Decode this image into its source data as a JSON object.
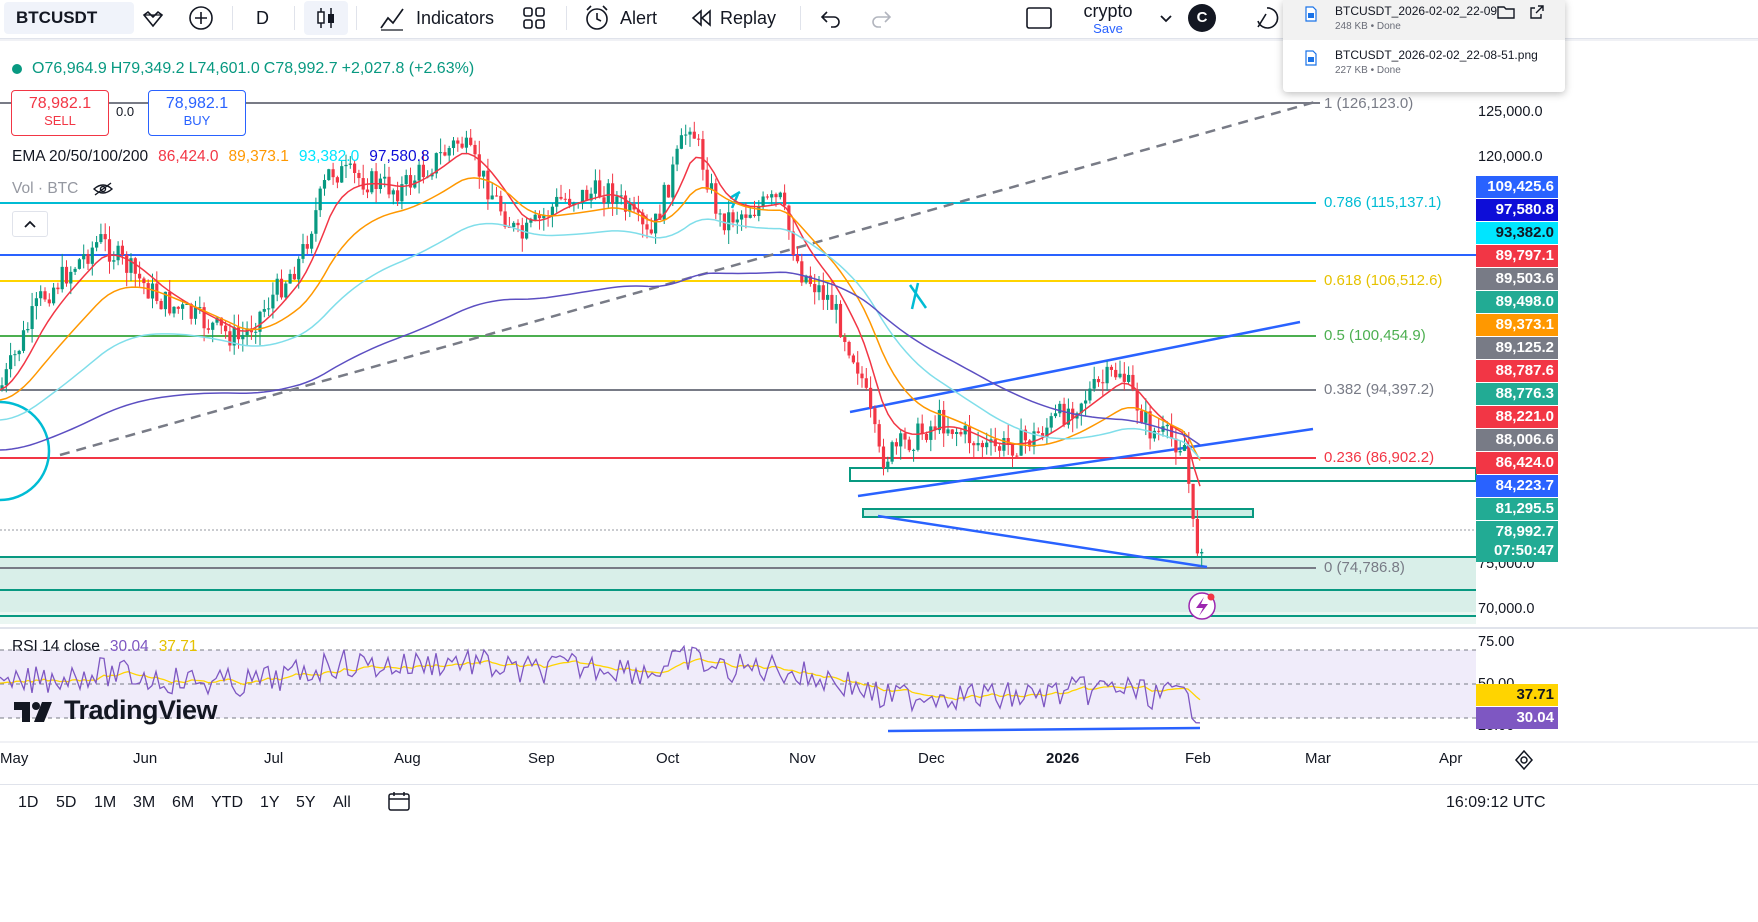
{
  "toolbar": {
    "symbol": "BTCUSDT",
    "interval": "D",
    "indicators_label": "Indicators",
    "alert_label": "Alert",
    "replay_label": "Replay",
    "layout_name": "crypto",
    "save_label": "Save",
    "avatar_letter": "C"
  },
  "downloads": [
    {
      "name": "BTCUSDT_2026-02-02_22-09",
      "meta": "248 KB • Done"
    },
    {
      "name": "BTCUSDT_2026-02-02_22-08-51.png",
      "meta": "227 KB • Done"
    }
  ],
  "legend": {
    "open": "O76,964.9",
    "high": "H79,349.2",
    "low": "L74,601.0",
    "close": "C78,992.7",
    "change": "+2,027.8 (+2.63%)",
    "sell_price": "78,982.1",
    "sell_label": "SELL",
    "spread": "0.0",
    "buy_price": "78,982.1",
    "buy_label": "BUY",
    "ema_label": "EMA 20/50/100/200",
    "ema20": "86,424.0",
    "ema50": "89,373.1",
    "ema100": "93,382.0",
    "ema200": "97,580.8",
    "vol_label": "Vol · BTC",
    "rsi_label": "RSI 14 close",
    "rsi_value": "30.04",
    "rsi_ma": "37.71"
  },
  "fib_levels": [
    {
      "label": "1 (126,123.0)",
      "color": "#787b86"
    },
    {
      "label": "0.786 (115,137.1)",
      "color": "#00bcd4"
    },
    {
      "label": "0.618 (106,512.6)",
      "color": "#ffd400"
    },
    {
      "label": "0.5 (100,454.9)",
      "color": "#4caf50"
    },
    {
      "label": "0.382 (94,397.2)",
      "color": "#787b86"
    },
    {
      "label": "0.236 (86,902.2)",
      "color": "#f23645"
    },
    {
      "label": "0 (74,786.8)",
      "color": "#787b86"
    }
  ],
  "price_axis": [
    "125,000.0",
    "120,000.0",
    "75,000.0",
    "70,000.0"
  ],
  "price_badges": [
    {
      "text": "109,425.6",
      "bg": "#2962ff"
    },
    {
      "text": "97,580.8",
      "bg": "#0d0dd8"
    },
    {
      "text": "93,382.0",
      "bg": "#00e5ff"
    },
    {
      "text": "89,797.1",
      "bg": "#f23645"
    },
    {
      "text": "89,503.6",
      "bg": "#787b86"
    },
    {
      "text": "89,498.0",
      "bg": "#22ab94"
    },
    {
      "text": "89,373.1",
      "bg": "#ff9800"
    },
    {
      "text": "89,125.2",
      "bg": "#787b86"
    },
    {
      "text": "88,787.6",
      "bg": "#f23645"
    },
    {
      "text": "88,776.3",
      "bg": "#22ab94"
    },
    {
      "text": "88,221.0",
      "bg": "#f23645"
    },
    {
      "text": "88,006.6",
      "bg": "#787b86"
    },
    {
      "text": "86,424.0",
      "bg": "#f23645"
    },
    {
      "text": "84,223.7",
      "bg": "#2962ff"
    },
    {
      "text": "81,295.5",
      "bg": "#22ab94"
    },
    {
      "text": "78,992.7",
      "bg": "#22ab94"
    },
    {
      "text": "07:50:47",
      "bg": "#22ab94"
    }
  ],
  "rsi_axis": [
    "75.00",
    "50.00",
    "25.00"
  ],
  "rsi_badges": [
    {
      "text": "37.71",
      "bg": "#ffd400"
    },
    {
      "text": "30.04",
      "bg": "#7e57c2"
    }
  ],
  "time_axis": [
    "May",
    "Jun",
    "Jul",
    "Aug",
    "Sep",
    "Oct",
    "Nov",
    "Dec",
    "2026",
    "Feb",
    "Mar",
    "Apr"
  ],
  "ranges": [
    "1D",
    "5D",
    "1M",
    "3M",
    "6M",
    "YTD",
    "1Y",
    "5Y",
    "All"
  ],
  "clock": "16:09:12 UTC",
  "logo_text": "TradingView",
  "colors": {
    "up": "#089981",
    "down": "#f23645",
    "ema20": "#f23645",
    "ema50": "#ff9800",
    "ema100": "#80deea",
    "ema200": "#5c4fc2"
  }
}
